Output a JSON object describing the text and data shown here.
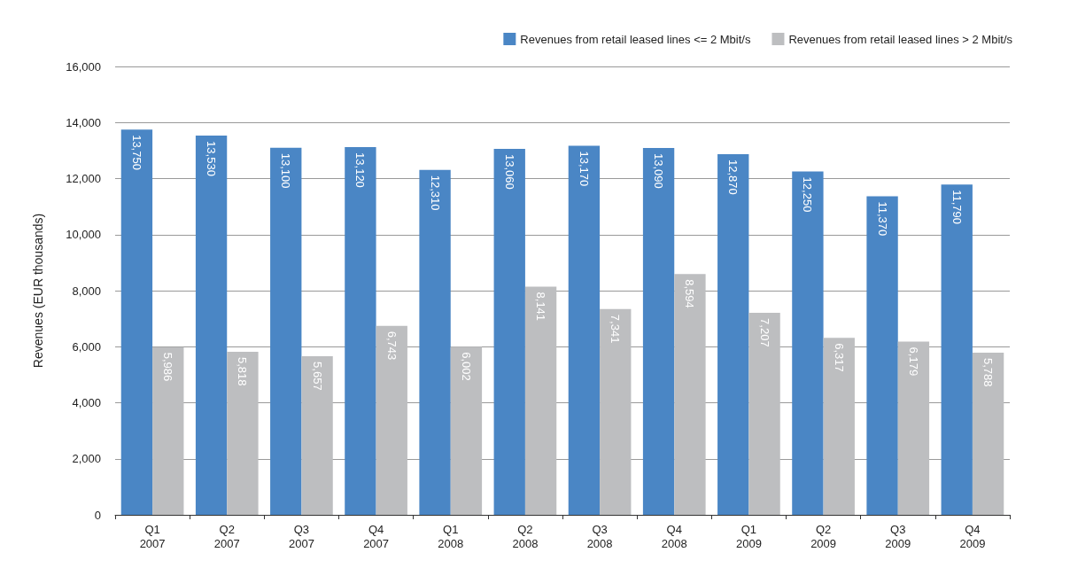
{
  "chart_data": {
    "type": "bar",
    "ylabel": "Revenues (EUR thousands)",
    "categories": [
      "Q1\n2007",
      "Q2\n2007",
      "Q3\n2007",
      "Q4\n2007",
      "Q1\n2008",
      "Q2\n2008",
      "Q3\n2008",
      "Q4\n2008",
      "Q1\n2009",
      "Q2\n2009",
      "Q3\n2009",
      "Q4\n2009"
    ],
    "series": [
      {
        "name": "Revenues from retail leased lines <= 2 Mbit/s",
        "color": "#4a86c5",
        "values": [
          13750,
          13530,
          13100,
          13120,
          12310,
          13060,
          13170,
          13090,
          12870,
          12250,
          11370,
          11790
        ],
        "value_labels": [
          "13,750",
          "13,530",
          "13,100",
          "13,120",
          "12,310",
          "13,060",
          "13,170",
          "13,090",
          "12,870",
          "12,250",
          "11,370",
          "11,790"
        ]
      },
      {
        "name": "Revenues from retail leased lines > 2 Mbit/s",
        "color": "#bdbec0",
        "values": [
          5986,
          5818,
          5657,
          6743,
          6002,
          8141,
          7341,
          8594,
          7207,
          6317,
          6179,
          5788
        ],
        "value_labels": [
          "5,986",
          "5,818",
          "5,657",
          "6,743",
          "6,002",
          "8,141",
          "7,341",
          "8,594",
          "7,207",
          "6,317",
          "6,179",
          "5,788"
        ]
      }
    ],
    "ylim": [
      0,
      16000
    ],
    "yticks": [
      {
        "value": 0,
        "label": "0"
      },
      {
        "value": 2000,
        "label": "2,000"
      },
      {
        "value": 4000,
        "label": "4,000"
      },
      {
        "value": 6000,
        "label": "6,000"
      },
      {
        "value": 8000,
        "label": "8,000"
      },
      {
        "value": 10000,
        "label": "10,000"
      },
      {
        "value": 12000,
        "label": "12,000"
      },
      {
        "value": 14000,
        "label": "14,000"
      },
      {
        "value": 16000,
        "label": "16,000"
      }
    ],
    "grid": "y",
    "legend": "top right"
  }
}
